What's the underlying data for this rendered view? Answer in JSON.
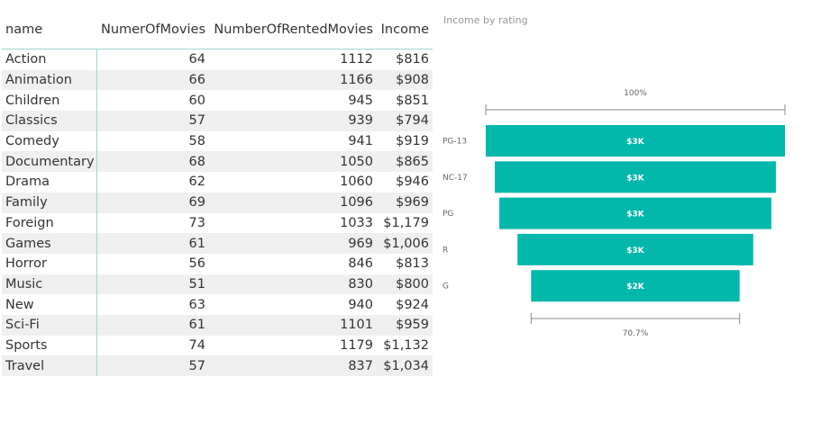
{
  "table": {
    "columns": [
      "name",
      "NumerOfMovies",
      "NumberOfRentedMovies",
      "Income"
    ],
    "rows": [
      [
        "Action",
        "64",
        "1112",
        "$816"
      ],
      [
        "Animation",
        "66",
        "1166",
        "$908"
      ],
      [
        "Children",
        "60",
        "945",
        "$851"
      ],
      [
        "Classics",
        "57",
        "939",
        "$794"
      ],
      [
        "Comedy",
        "58",
        "941",
        "$919"
      ],
      [
        "Documentary",
        "68",
        "1050",
        "$865"
      ],
      [
        "Drama",
        "62",
        "1060",
        "$946"
      ],
      [
        "Family",
        "69",
        "1096",
        "$969"
      ],
      [
        "Foreign",
        "73",
        "1033",
        "$1,179"
      ],
      [
        "Games",
        "61",
        "969",
        "$1,006"
      ],
      [
        "Horror",
        "56",
        "846",
        "$813"
      ],
      [
        "Music",
        "51",
        "830",
        "$800"
      ],
      [
        "New",
        "63",
        "940",
        "$924"
      ],
      [
        "Sci-Fi",
        "61",
        "1101",
        "$959"
      ],
      [
        "Sports",
        "74",
        "1179",
        "$1,132"
      ],
      [
        "Travel",
        "57",
        "837",
        "$1,034"
      ]
    ]
  },
  "chart_data": {
    "type": "funnel",
    "title": "Income by rating",
    "categories": [
      "PG-13",
      "NC-17",
      "PG",
      "R",
      "G"
    ],
    "values": [
      3.3,
      3.1,
      3.0,
      2.6,
      2.3
    ],
    "data_labels": [
      "$3K",
      "$3K",
      "$3K",
      "$3K",
      "$2K"
    ],
    "top_label": "100%",
    "bottom_label": "70.7%",
    "bar_color": "#01b8aa"
  }
}
